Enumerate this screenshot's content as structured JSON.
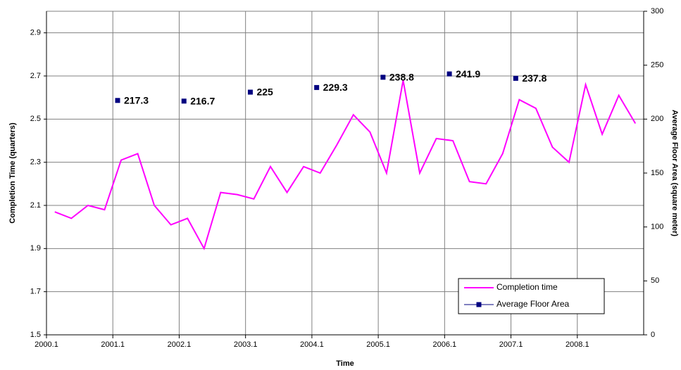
{
  "chart_data": {
    "type": "line",
    "x_label": "Time",
    "y_label": "Completion Time (quarters)",
    "y2_label": "Average Floor Area (square meter)",
    "categories": [
      "2000.1",
      null,
      null,
      null,
      "2001.1",
      null,
      null,
      null,
      "2002.1",
      null,
      null,
      null,
      "2003.1",
      null,
      null,
      null,
      "2004.1",
      null,
      null,
      null,
      "2005.1",
      null,
      null,
      null,
      "2006.1",
      null,
      null,
      null,
      "2007.1",
      null,
      null,
      null,
      "2008.1",
      null,
      null,
      null
    ],
    "series": [
      {
        "name": "Completion time",
        "color": "#ff00ff",
        "values": [
          2.07,
          2.04,
          2.1,
          2.08,
          2.31,
          2.34,
          2.1,
          2.01,
          2.04,
          1.9,
          2.16,
          2.15,
          2.13,
          2.28,
          2.16,
          2.28,
          2.25,
          2.38,
          2.52,
          2.44,
          2.25,
          2.68,
          2.25,
          2.41,
          2.4,
          2.21,
          2.2,
          2.34,
          2.59,
          2.55,
          2.37,
          2.3,
          2.66,
          2.43,
          2.61,
          2.48
        ]
      },
      {
        "name": "Average Floor Area",
        "color": "#000080",
        "axis": "y2",
        "values": [
          null,
          null,
          null,
          null,
          217.3,
          null,
          null,
          null,
          216.7,
          null,
          null,
          null,
          225,
          null,
          null,
          null,
          229.3,
          null,
          null,
          null,
          238.8,
          null,
          null,
          null,
          241.9,
          null,
          null,
          null,
          237.8,
          null,
          null,
          null,
          null,
          null,
          null,
          null
        ]
      }
    ],
    "ylim": [
      1.5,
      3.0
    ],
    "yticks": [
      1.5,
      1.7,
      1.9,
      2.1,
      2.3,
      2.5,
      2.7,
      2.9
    ],
    "y2lim": [
      0,
      300
    ],
    "y2ticks": [
      0,
      50,
      100,
      150,
      200,
      250,
      300
    ],
    "grid": true,
    "legend": "lower right"
  }
}
